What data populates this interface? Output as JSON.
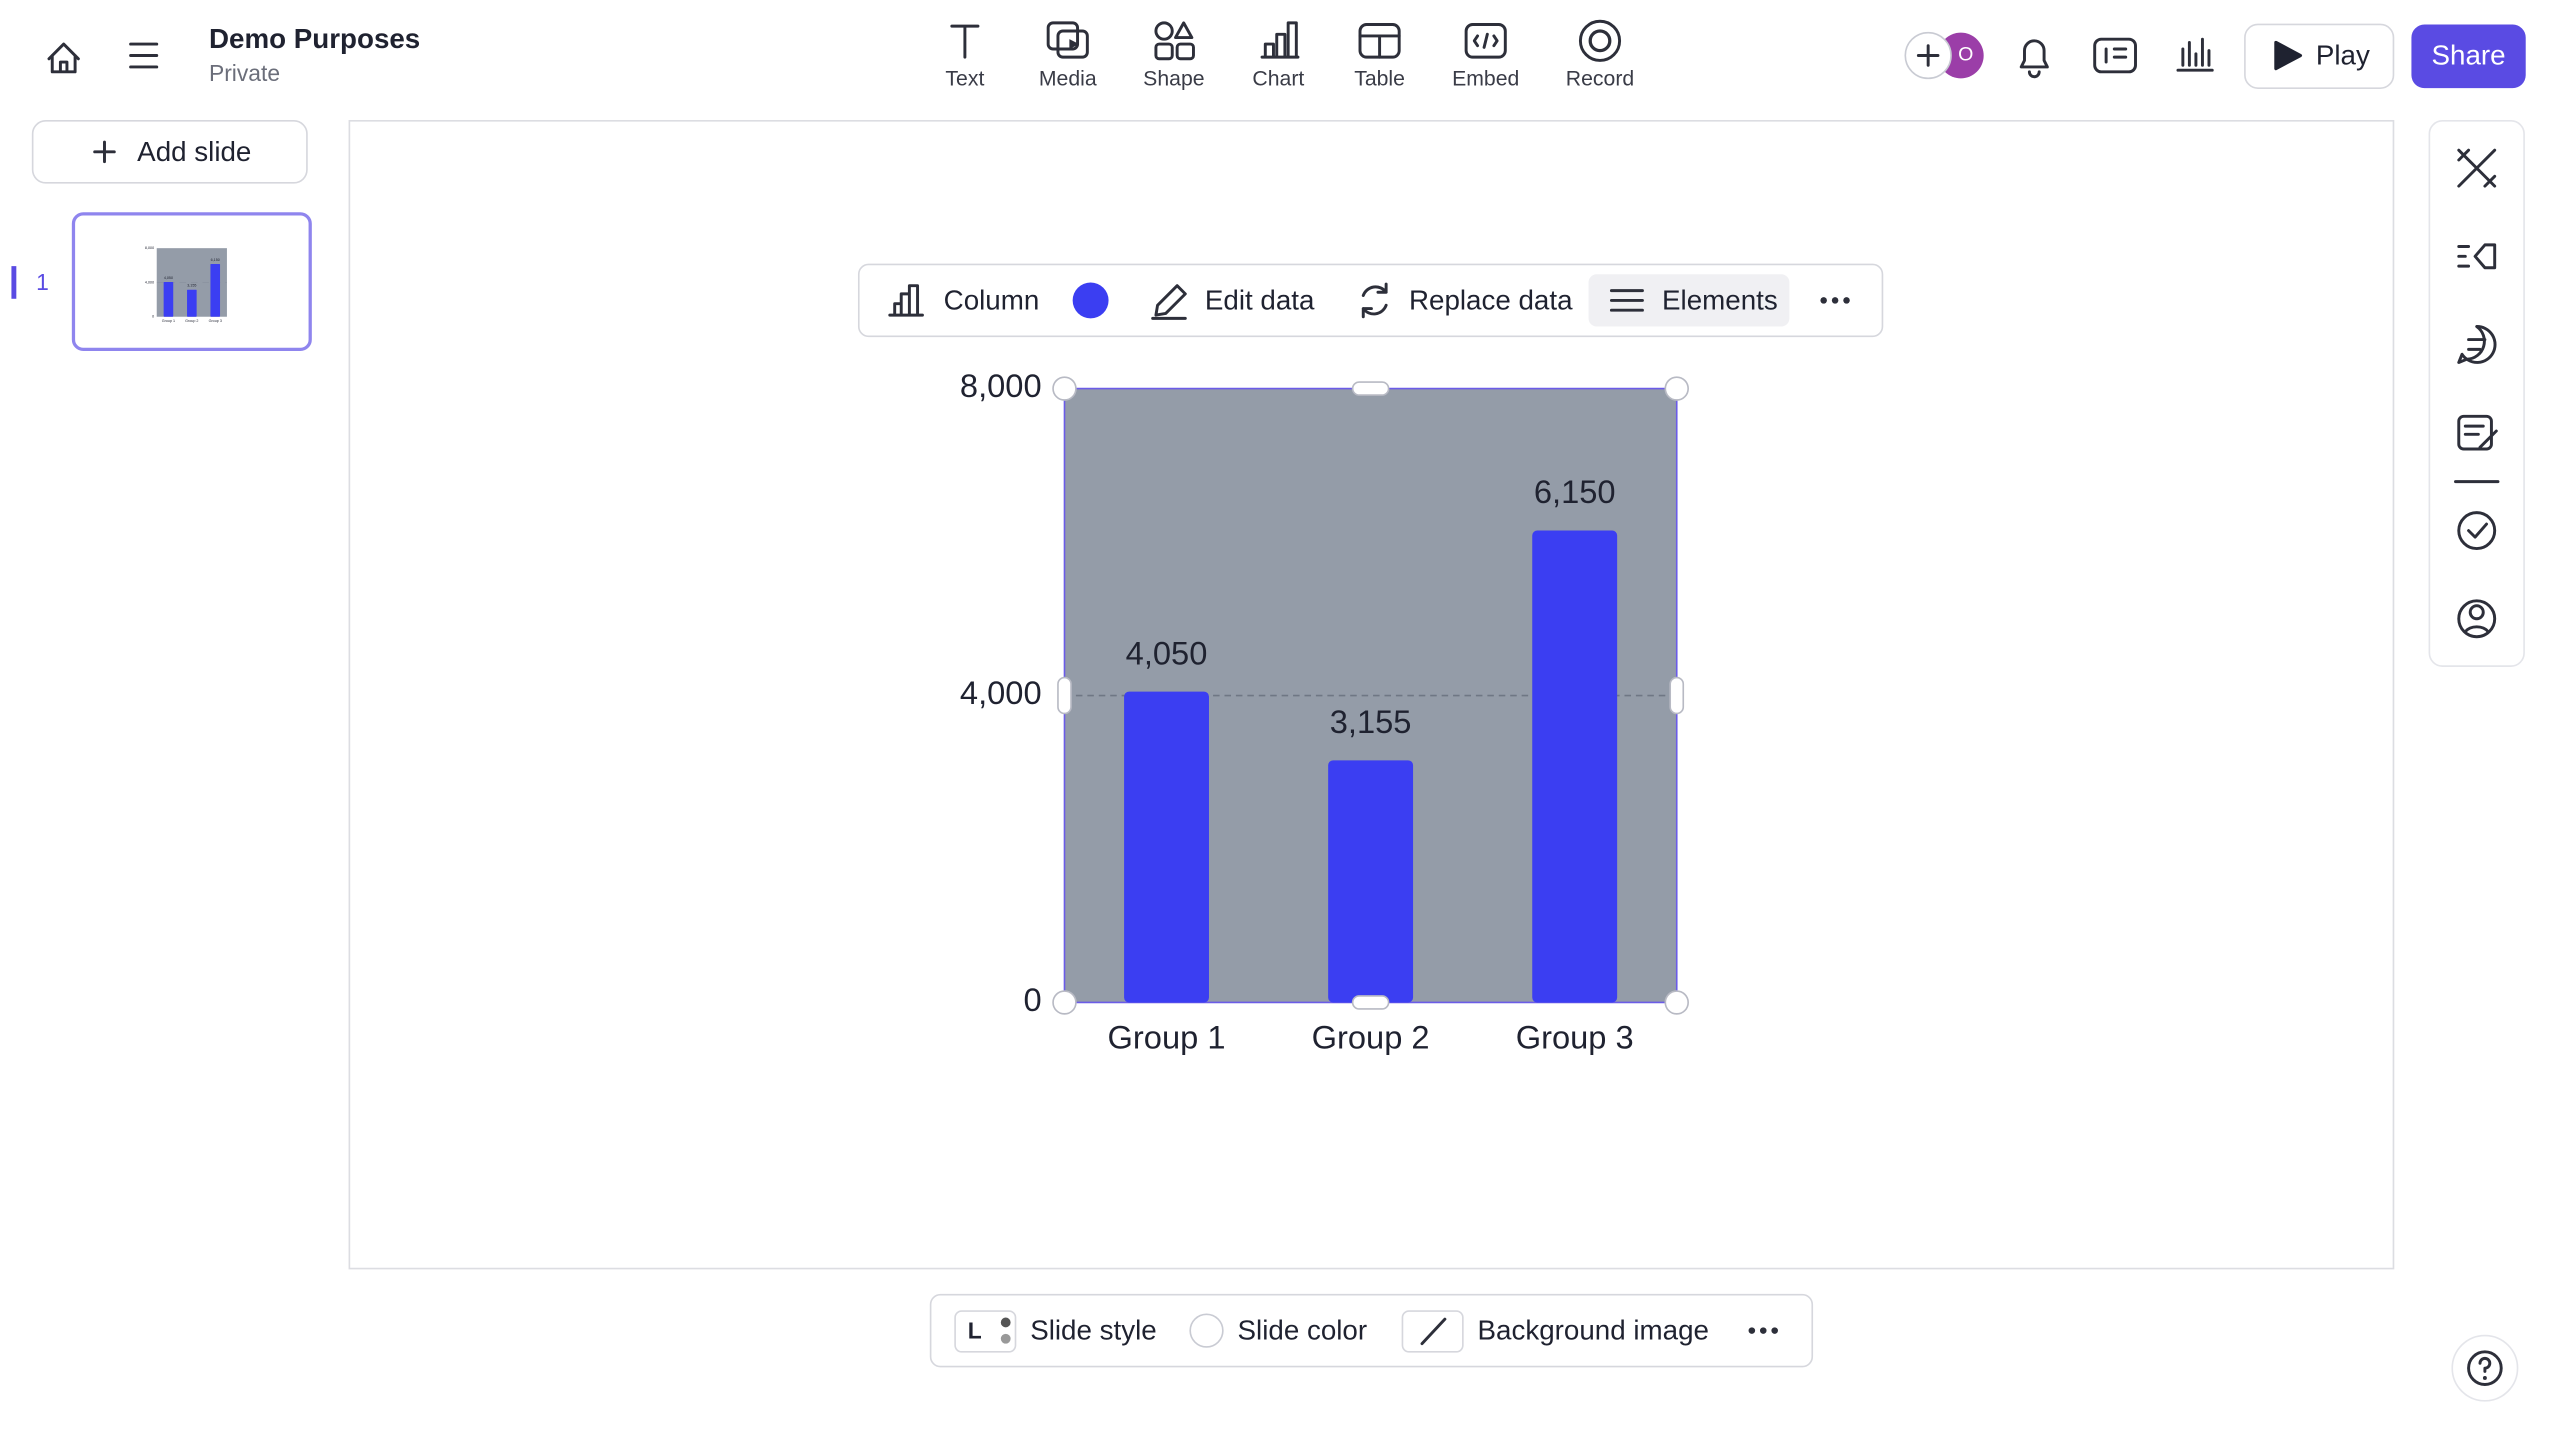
{
  "header": {
    "title": "Demo Purposes",
    "subtitle": "Private"
  },
  "toolbar": [
    "Text",
    "Media",
    "Shape",
    "Chart",
    "Table",
    "Embed",
    "Record"
  ],
  "actions": {
    "play": "Play",
    "share": "Share"
  },
  "sidebar": {
    "add_slide": "Add slide",
    "slide_number": 1
  },
  "chart_toolbar": {
    "type": "Column",
    "edit": "Edit data",
    "replace": "Replace data",
    "elements": "Elements"
  },
  "bottom_bar": {
    "style_letter": "L",
    "style": "Slide style",
    "color": "Slide color",
    "background": "Background image"
  },
  "chart_data": {
    "type": "bar",
    "categories": [
      "Group 1",
      "Group 2",
      "Group 3"
    ],
    "values": [
      4050,
      3155,
      6150
    ],
    "value_labels": [
      "4,050",
      "3,155",
      "6,150"
    ],
    "color": "#3b3ef2",
    "background": "#949ca8",
    "ylim": [
      0,
      8000
    ],
    "yticks": [
      0,
      {
        "value": 4000,
        "label": "4,000"
      },
      {
        "value": 8000,
        "label": "8,000"
      }
    ],
    "grid": true
  }
}
